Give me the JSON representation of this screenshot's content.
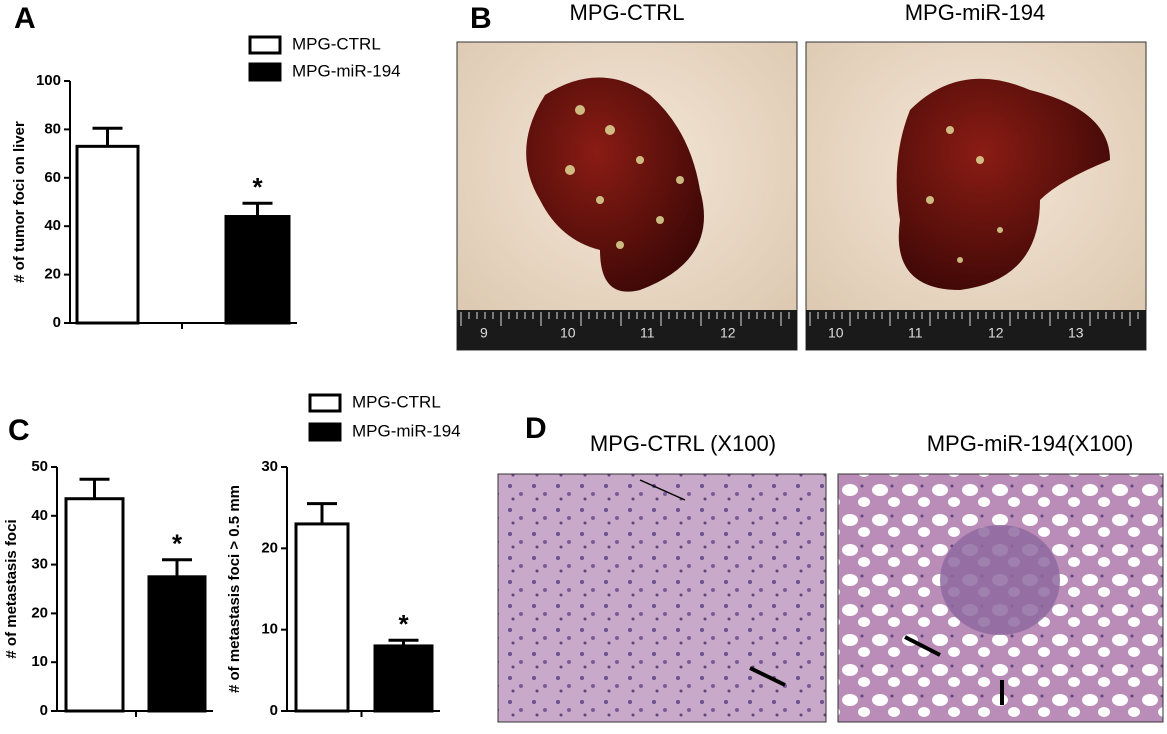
{
  "chart_data": [
    {
      "type": "bar",
      "panel": "A",
      "y_label": "# of tumor foci on liver",
      "series": [
        {
          "name": "MPG-CTRL",
          "color": "#ffffff",
          "values": [
            73
          ],
          "errors": [
            7.5
          ]
        },
        {
          "name": "MPG-miR-194",
          "color": "#000000",
          "values": [
            44
          ],
          "errors": [
            5.5
          ]
        }
      ],
      "annotation": "*",
      "ylim": [
        0,
        100
      ],
      "yticks": [
        0,
        20,
        40,
        60,
        80,
        100
      ],
      "legend": "top-right"
    },
    {
      "type": "bar",
      "panel": "C",
      "y_label": "# of metastasis foci",
      "series": [
        {
          "name": "MPG-CTRL",
          "color": "#ffffff",
          "values": [
            43.5
          ],
          "errors": [
            4
          ]
        },
        {
          "name": "MPG-miR-194",
          "color": "#000000",
          "values": [
            27.5
          ],
          "errors": [
            3.5
          ]
        }
      ],
      "annotation": "*",
      "ylim": [
        0,
        50
      ],
      "yticks": [
        0,
        10,
        20,
        30,
        40,
        50
      ],
      "legend": "top-right"
    },
    {
      "type": "bar",
      "y_label": "# of metastasis foci > 0.5 mm",
      "series": [
        {
          "color": "#ffffff",
          "values": [
            23
          ],
          "errors": [
            2.5
          ]
        },
        {
          "color": "#000000",
          "values": [
            8
          ],
          "errors": [
            0.7
          ]
        }
      ],
      "annotation": "*",
      "ylim": [
        0,
        30
      ],
      "yticks": [
        0,
        10,
        20,
        30
      ]
    }
  ],
  "panel_b": {
    "label": "B",
    "titles": [
      "MPG-CTRL",
      "MPG-miR-194"
    ],
    "ruler_labels": [
      [
        "9",
        "10",
        "11",
        "12"
      ],
      [
        "10",
        "11",
        "12",
        "13"
      ]
    ]
  },
  "panel_d": {
    "label": "D",
    "titles": [
      "MPG-CTRL (X100)",
      "MPG-miR-194(X100)"
    ]
  }
}
